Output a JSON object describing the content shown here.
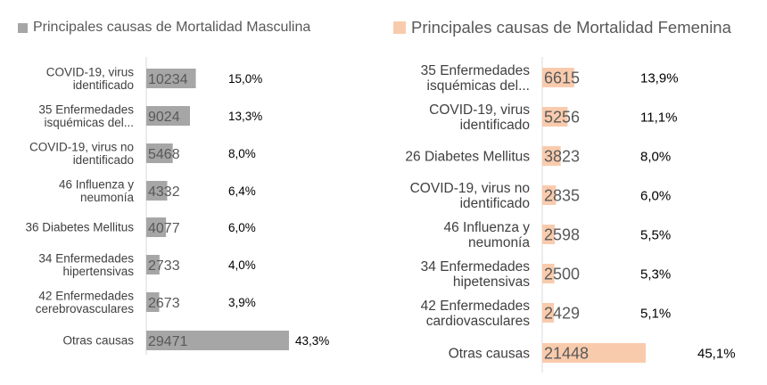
{
  "colors": {
    "male": "#a6a6a6",
    "female": "#f9cbad",
    "axis": "#d9d9d9",
    "label": "#404040",
    "value": "#595959",
    "percent": "#000000"
  },
  "chart_data": [
    {
      "type": "bar",
      "orientation": "horizontal",
      "title": "Principales causas de Mortalidad Masculina",
      "legend_position": "top-left",
      "categories": [
        [
          "COVID-19, virus",
          "identificado"
        ],
        [
          "35 Enfermedades",
          "isquémicas del..."
        ],
        [
          "COVID-19, virus no",
          "identificado"
        ],
        [
          "46 Influenza y",
          "neumonía"
        ],
        [
          "36 Diabetes Mellitus"
        ],
        [
          "34 Enfermedades",
          "hipertensivas"
        ],
        [
          "42 Enfermedades",
          "cerebrovasculares"
        ],
        [
          "Otras causas"
        ]
      ],
      "series": [
        {
          "name": "Principales causas de Mortalidad Masculina",
          "values": [
            10234,
            9024,
            5468,
            4332,
            4077,
            2733,
            2673,
            29471
          ]
        }
      ],
      "value_labels": [
        "10234",
        "9024",
        "5468",
        "4332",
        "4077",
        "2733",
        "2673",
        "29471"
      ],
      "percent_labels": [
        "15,0%",
        "13,3%",
        "8,0%",
        "6,4%",
        "6,0%",
        "4,0%",
        "3,9%",
        "43,3%"
      ],
      "xlim": [
        0,
        29471
      ],
      "grid": false
    },
    {
      "type": "bar",
      "orientation": "horizontal",
      "title": "Principales causas de Mortalidad Femenina",
      "legend_position": "top-left",
      "categories": [
        [
          "35 Enfermedades",
          "isquémicas del..."
        ],
        [
          "COVID-19, virus",
          "identificado"
        ],
        [
          "26 Diabetes Mellitus"
        ],
        [
          "COVID-19, virus no",
          "identificado"
        ],
        [
          "46 Influenza y",
          "neumonía"
        ],
        [
          "34 Enfermedades",
          "hipetensivas"
        ],
        [
          "42 Enfermedades",
          "cardiovasculares"
        ],
        [
          "Otras causas"
        ]
      ],
      "series": [
        {
          "name": "Principales causas de Mortalidad Femenina",
          "values": [
            6615,
            5256,
            3823,
            2835,
            2598,
            2500,
            2429,
            21448
          ]
        }
      ],
      "value_labels": [
        "6615",
        "5256",
        "3823",
        "2835",
        "2598",
        "2500",
        "2429",
        "21448"
      ],
      "percent_labels": [
        "13,9%",
        "11,1%",
        "8,0%",
        "6,0%",
        "5,5%",
        "5,3%",
        "5,1%",
        "45,1%"
      ],
      "xlim": [
        0,
        21448
      ],
      "grid": false
    }
  ]
}
